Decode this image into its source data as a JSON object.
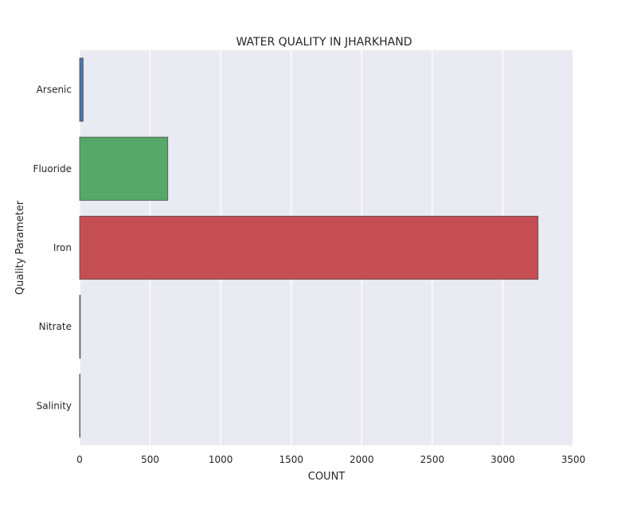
{
  "chart_data": {
    "type": "bar",
    "orientation": "horizontal",
    "title": "WATER QUALITY IN JHARKHAND",
    "xlabel": "COUNT",
    "ylabel": "Quality Parameter",
    "categories": [
      "Arsenic",
      "Fluoride",
      "Iron",
      "Nitrate",
      "Salinity"
    ],
    "values": [
      25,
      625,
      3250,
      5,
      2
    ],
    "colors": [
      "#4c72b0",
      "#55a868",
      "#c44e52",
      "#8172b2",
      "#ccb974"
    ],
    "xlim": [
      0,
      3500
    ],
    "xticks": [
      "0",
      "500",
      "1000",
      "1500",
      "2000",
      "2500",
      "3000",
      "3500"
    ],
    "grid": true,
    "background": "#eaeaf2"
  }
}
